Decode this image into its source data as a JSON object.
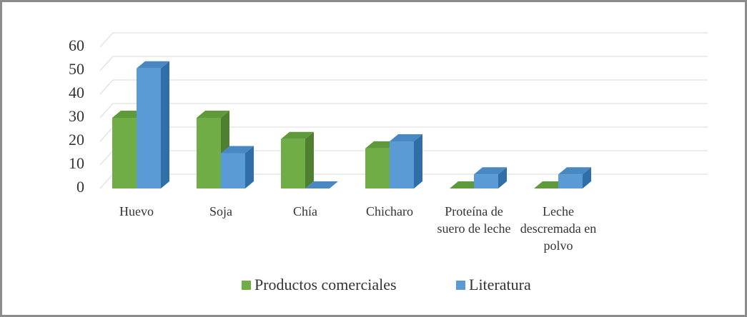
{
  "chart_data": {
    "type": "bar3d",
    "categories": [
      "Huevo",
      "Soja",
      "Chía",
      "Chicharo",
      "Proteína de suero de leche",
      "Leche descremada en polvo"
    ],
    "series": [
      {
        "name": "Productos comerciales",
        "color": "#70ad47",
        "side": "#4f7f30",
        "top": "#5e9a3a",
        "values": [
          30,
          30,
          21,
          17,
          0,
          0
        ]
      },
      {
        "name": "Literatura",
        "color": "#5b9bd5",
        "side": "#2f6ea6",
        "top": "#4a88c2",
        "values": [
          51,
          15,
          0,
          20,
          6,
          6
        ]
      }
    ],
    "ylim": [
      0,
      60
    ],
    "yticks": [
      0,
      10,
      20,
      30,
      40,
      50,
      60
    ],
    "grid": true,
    "legend": "bottom"
  }
}
